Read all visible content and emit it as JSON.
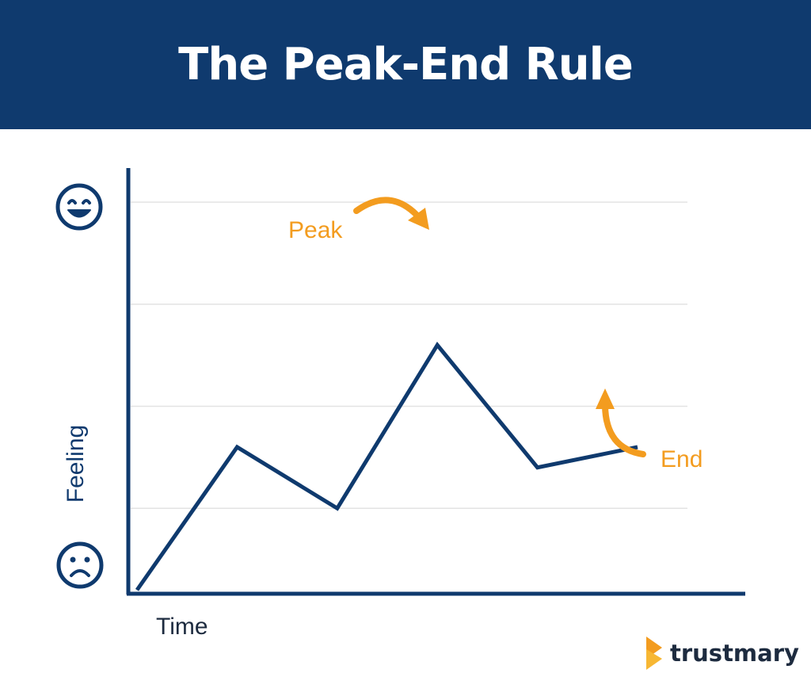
{
  "header": {
    "title": "The Peak-End Rule"
  },
  "chart_data": {
    "type": "line",
    "title": "The Peak-End Rule",
    "xlabel": "Time",
    "ylabel": "Feeling",
    "y_axis_top_icon": "happy-face-icon",
    "y_axis_bottom_icon": "sad-face-icon",
    "grid": true,
    "legend": "none",
    "ylim": [
      0,
      4
    ],
    "series": [
      {
        "x": [
          0,
          1,
          2,
          3,
          4,
          5
        ],
        "values": [
          0.2,
          1.6,
          1.0,
          2.6,
          1.4,
          1.6
        ]
      }
    ],
    "annotations": [
      {
        "label": "Peak",
        "point_index": 3
      },
      {
        "label": "End",
        "point_index": 5
      }
    ]
  },
  "colors": {
    "header_bg": "#0f3a6e",
    "line": "#0f3a6e",
    "accent": "#f39c1f",
    "grid": "#e3e3e3"
  },
  "brand": {
    "name": "trustmary",
    "logo_icon": "trustmary-logo-icon"
  }
}
